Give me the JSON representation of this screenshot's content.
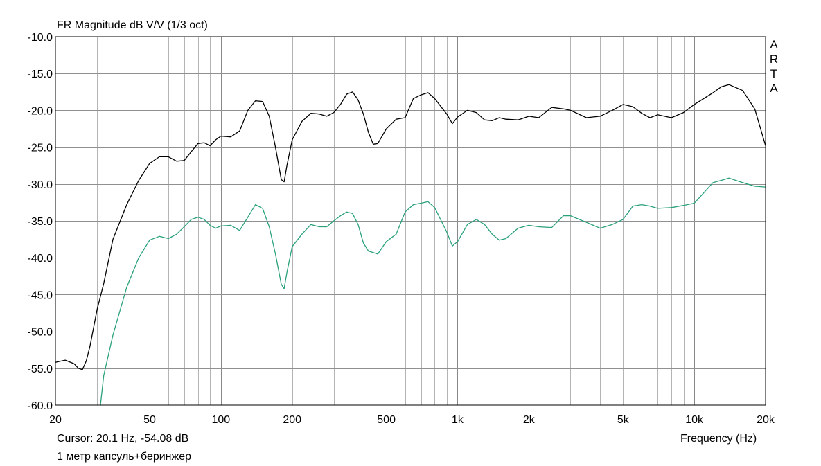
{
  "chart_data": {
    "type": "line",
    "title": "FR Magnitude dB V/V (1/3 oct)",
    "xlabel": "Frequency (Hz)",
    "ylabel": "",
    "xscale": "log",
    "xlim": [
      20,
      20000
    ],
    "ylim": [
      -60,
      -10
    ],
    "grid": true,
    "y_ticks": [
      "-10.0",
      "-15.0",
      "-20.0",
      "-25.0",
      "-30.0",
      "-35.0",
      "-40.0",
      "-45.0",
      "-50.0",
      "-55.0",
      "-60.0"
    ],
    "x_ticks": [
      {
        "value": 20,
        "label": "20"
      },
      {
        "value": 50,
        "label": "50"
      },
      {
        "value": 100,
        "label": "100"
      },
      {
        "value": 200,
        "label": "200"
      },
      {
        "value": 500,
        "label": "500"
      },
      {
        "value": 1000,
        "label": "1k"
      },
      {
        "value": 2000,
        "label": "2k"
      },
      {
        "value": 5000,
        "label": "5k"
      },
      {
        "value": 10000,
        "label": "10k"
      },
      {
        "value": 20000,
        "label": "20k"
      }
    ],
    "series": [
      {
        "color": "#000000",
        "x": [
          20,
          22,
          24,
          25,
          26,
          27,
          28,
          30,
          32,
          35,
          40,
          45,
          50,
          55,
          60,
          65,
          70,
          75,
          80,
          85,
          90,
          95,
          100,
          110,
          120,
          130,
          140,
          150,
          160,
          170,
          180,
          185,
          190,
          200,
          220,
          240,
          260,
          280,
          300,
          320,
          340,
          360,
          380,
          400,
          420,
          440,
          460,
          500,
          550,
          600,
          650,
          700,
          750,
          800,
          900,
          950,
          1000,
          1100,
          1200,
          1300,
          1400,
          1500,
          1600,
          1800,
          2000,
          2200,
          2500,
          2800,
          3000,
          3500,
          4000,
          4500,
          5000,
          5500,
          6000,
          6500,
          7000,
          8000,
          9000,
          10000,
          12000,
          13000,
          14000,
          16000,
          18000,
          20000
        ],
        "y": [
          -54.2,
          -53.9,
          -54.4,
          -55.0,
          -55.2,
          -54.0,
          -52.0,
          -47.0,
          -43.5,
          -37.5,
          -32.8,
          -29.5,
          -27.2,
          -26.3,
          -26.3,
          -26.9,
          -26.8,
          -25.6,
          -24.5,
          -24.4,
          -24.8,
          -24.0,
          -23.5,
          -23.6,
          -22.8,
          -20.0,
          -18.7,
          -18.8,
          -20.8,
          -25.0,
          -29.4,
          -29.7,
          -27.5,
          -24.0,
          -21.5,
          -20.4,
          -20.5,
          -20.8,
          -20.3,
          -19.2,
          -17.8,
          -17.5,
          -18.6,
          -20.5,
          -23.0,
          -24.6,
          -24.5,
          -22.5,
          -21.2,
          -21.0,
          -18.4,
          -17.9,
          -17.6,
          -18.4,
          -20.5,
          -21.8,
          -20.9,
          -20.0,
          -20.3,
          -21.3,
          -21.4,
          -21.0,
          -21.2,
          -21.3,
          -20.8,
          -21.0,
          -19.6,
          -19.8,
          -20.0,
          -21.0,
          -20.8,
          -20.0,
          -19.2,
          -19.5,
          -20.4,
          -21.0,
          -20.6,
          -21.0,
          -20.3,
          -19.2,
          -17.6,
          -16.8,
          -16.5,
          -17.3,
          -19.8,
          -24.8
        ]
      },
      {
        "color": "#2aa07c",
        "x": [
          31,
          32,
          35,
          40,
          45,
          50,
          55,
          60,
          65,
          70,
          75,
          80,
          85,
          90,
          95,
          100,
          110,
          120,
          130,
          140,
          150,
          160,
          170,
          180,
          185,
          190,
          200,
          220,
          240,
          260,
          280,
          300,
          320,
          340,
          360,
          380,
          400,
          420,
          440,
          460,
          500,
          550,
          600,
          650,
          700,
          750,
          800,
          900,
          950,
          1000,
          1100,
          1200,
          1300,
          1400,
          1500,
          1600,
          1800,
          2000,
          2200,
          2500,
          2800,
          3000,
          3500,
          4000,
          4500,
          5000,
          5500,
          6000,
          6500,
          7000,
          8000,
          9000,
          10000,
          12000,
          13000,
          14000,
          16000,
          18000,
          20000
        ],
        "y": [
          -60.0,
          -56.0,
          -50.5,
          -44.0,
          -40.0,
          -37.6,
          -37.1,
          -37.4,
          -36.8,
          -35.8,
          -34.8,
          -34.5,
          -34.8,
          -35.6,
          -36.0,
          -35.7,
          -35.6,
          -36.3,
          -34.5,
          -32.8,
          -33.3,
          -35.8,
          -39.5,
          -43.6,
          -44.2,
          -42.0,
          -38.5,
          -36.8,
          -35.5,
          -35.8,
          -35.8,
          -35.0,
          -34.3,
          -33.8,
          -34.0,
          -35.5,
          -38.0,
          -39.1,
          -39.3,
          -39.5,
          -37.8,
          -36.8,
          -33.8,
          -32.8,
          -32.6,
          -32.4,
          -33.2,
          -36.5,
          -38.4,
          -37.8,
          -35.5,
          -34.8,
          -35.5,
          -36.8,
          -37.6,
          -37.4,
          -36.0,
          -35.6,
          -35.8,
          -35.9,
          -34.3,
          -34.3,
          -35.2,
          -36.0,
          -35.5,
          -34.8,
          -33.0,
          -32.8,
          -33.0,
          -33.3,
          -33.2,
          -32.9,
          -32.6,
          -29.8,
          -29.5,
          -29.2,
          -29.8,
          -30.3,
          -30.4
        ]
      }
    ]
  },
  "cursor_readout": "Cursor: 20.1 Hz, -54.08 dB",
  "annotation": "1 метр капсуль+беринжер",
  "brand": [
    "A",
    "R",
    "T",
    "A"
  ],
  "colors": {
    "grid": "#b4b4b4",
    "frame": "#000000",
    "series1": "#000000",
    "series2": "#2aa07c"
  }
}
